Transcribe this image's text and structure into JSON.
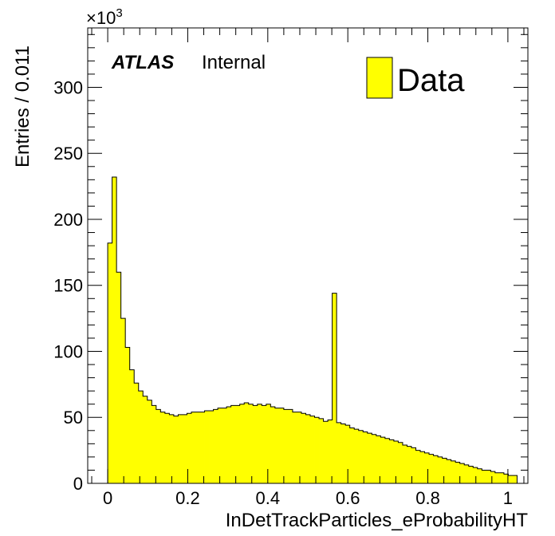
{
  "chart_data": {
    "type": "bar",
    "style": "histogram",
    "bin_width": 0.011,
    "x_start": -0.011,
    "values": [
      0,
      182,
      232,
      160,
      125,
      103,
      86,
      76,
      70,
      66,
      63,
      59,
      56,
      54,
      53,
      52,
      51,
      52,
      52,
      53,
      54,
      54,
      54,
      55,
      55,
      56,
      57,
      57,
      58,
      59,
      59,
      60,
      61,
      60,
      59,
      60,
      59,
      60,
      58,
      57,
      57,
      56,
      56,
      54,
      54,
      53,
      52,
      51,
      50,
      49,
      47,
      48,
      144,
      46,
      45,
      44,
      42,
      41,
      40,
      39,
      38,
      37,
      36,
      35,
      34,
      33,
      32,
      31,
      29,
      28,
      27,
      25,
      24,
      23,
      22,
      21,
      20,
      19,
      18,
      17,
      16,
      15,
      14,
      13,
      12,
      11,
      10,
      10,
      9,
      8,
      8,
      7,
      6,
      6
    ],
    "bar_color": "#ffff00",
    "edge_color": "#000000",
    "xlabel": "InDetTrackParticles_eProbabilityHT",
    "ylabel": "Entries / 0.011",
    "y_multiplier": "×10",
    "y_multiplier_exp": "3",
    "xlim": [
      -0.05,
      1.05
    ],
    "ylim": [
      0,
      345
    ],
    "x_ticks": [
      "0",
      "0.2",
      "0.4",
      "0.6",
      "0.8",
      "1"
    ],
    "y_ticks": [
      "0",
      "50",
      "100",
      "150",
      "200",
      "250",
      "300"
    ],
    "legend": {
      "entries": [
        "Data"
      ],
      "placement": "top-right"
    },
    "annotation": {
      "experiment": "ATLAS",
      "status": "Internal"
    },
    "grid": false
  }
}
